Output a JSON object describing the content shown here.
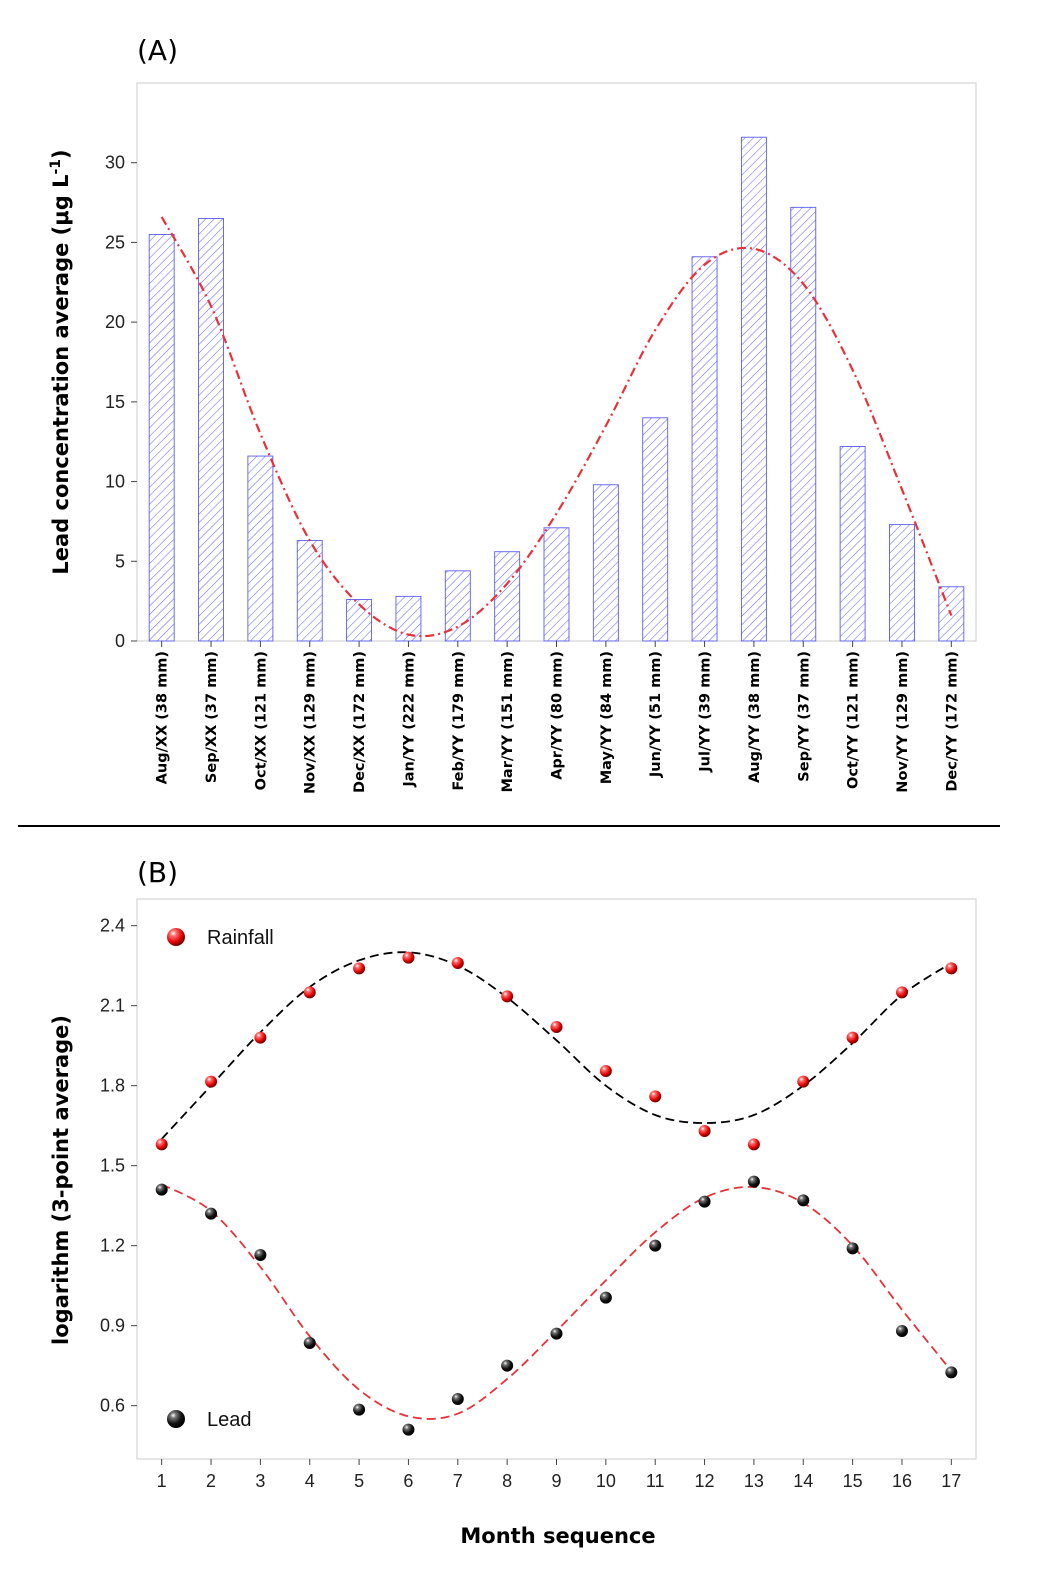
{
  "chart_data": [
    {
      "panel": "A",
      "type": "bar",
      "title": "(A)",
      "ylabel": "Lead concentration average (μg L",
      "ylabel_sup": "-1",
      "ylabel_close": ")",
      "ylim": [
        0,
        35
      ],
      "yticks": [
        0,
        5,
        10,
        15,
        20,
        25,
        30
      ],
      "categories": [
        "Aug/XX (38 mm)",
        "Sep/XX (37 mm)",
        "Oct/XX (121 mm)",
        "Nov/XX (129 mm)",
        "Dec/XX (172 mm)",
        "Jan/YY (222 mm)",
        "Feb/YY (179 mm)",
        "Mar/YY (151 mm)",
        "Apr/YY (80 mm)",
        "May/YY (84 mm)",
        "Jun/YY (51 mm)",
        "Jul/YY (39 mm)",
        "Aug/YY (38 mm)",
        "Sep/YY (37 mm)",
        "Oct/YY (121 mm)",
        "Nov/YY (129 mm)",
        "Dec/YY (172 mm)"
      ],
      "values": [
        25.5,
        26.5,
        11.6,
        6.3,
        2.6,
        2.8,
        4.4,
        5.6,
        7.1,
        9.8,
        14.0,
        24.1,
        31.6,
        27.2,
        12.2,
        7.3,
        3.4
      ],
      "fit_line": {
        "style": "dash-dot",
        "color": "#e8323a",
        "x": [
          1,
          2,
          3,
          4,
          5,
          6,
          7,
          8,
          9,
          10,
          11,
          12,
          13,
          14,
          15,
          16,
          17
        ],
        "y": [
          26.6,
          21.0,
          13.0,
          6.3,
          2.3,
          0.4,
          0.9,
          3.6,
          8.0,
          13.5,
          19.5,
          23.6,
          24.6,
          22.4,
          17.0,
          9.5,
          1.6
        ]
      },
      "bar_color": "#5b5bf0"
    },
    {
      "panel": "B",
      "type": "scatter",
      "title": "(B)",
      "xlabel": "Month sequence",
      "ylabel": "logarithm (3-point average)",
      "xlim": [
        0.5,
        17.5
      ],
      "ylim": [
        0.4,
        2.5
      ],
      "xticks": [
        1,
        2,
        3,
        4,
        5,
        6,
        7,
        8,
        9,
        10,
        11,
        12,
        13,
        14,
        15,
        16,
        17
      ],
      "yticks": [
        "0.6",
        "0.9",
        "1.2",
        "1.5",
        "1.8",
        "2.1",
        "2.4"
      ],
      "series": [
        {
          "name": "Rainfall",
          "color": "#ff1a1a",
          "x": [
            1,
            2,
            3,
            4,
            5,
            6,
            7,
            8,
            9,
            10,
            11,
            12,
            13,
            14,
            15,
            16,
            17
          ],
          "y": [
            1.58,
            1.815,
            1.98,
            2.15,
            2.24,
            2.28,
            2.26,
            2.135,
            2.02,
            1.855,
            1.76,
            1.63,
            1.58,
            1.815,
            1.98,
            2.15,
            2.24
          ],
          "fit": {
            "color": "#000000",
            "x": [
              1,
              2,
              3,
              4,
              5,
              6,
              7,
              8,
              9,
              10,
              11,
              12,
              13,
              14,
              15,
              16,
              17
            ],
            "y": [
              1.6,
              1.8,
              2.0,
              2.17,
              2.27,
              2.3,
              2.25,
              2.13,
              1.97,
              1.8,
              1.69,
              1.66,
              1.69,
              1.8,
              1.96,
              2.14,
              2.26
            ]
          }
        },
        {
          "name": "Lead",
          "color": "#111111",
          "x": [
            1,
            2,
            3,
            4,
            5,
            6,
            7,
            8,
            9,
            10,
            11,
            12,
            13,
            14,
            15,
            16,
            17
          ],
          "y": [
            1.41,
            1.32,
            1.165,
            0.835,
            0.585,
            0.51,
            0.625,
            0.75,
            0.87,
            1.005,
            1.2,
            1.365,
            1.44,
            1.37,
            1.19,
            0.88,
            0.725
          ],
          "fit": {
            "color": "#e8323a",
            "x": [
              1,
              2,
              3,
              4,
              5,
              6,
              7,
              8,
              9,
              10,
              11,
              12,
              13,
              14,
              15,
              16,
              17
            ],
            "y": [
              1.43,
              1.33,
              1.12,
              0.86,
              0.66,
              0.56,
              0.57,
              0.7,
              0.88,
              1.07,
              1.25,
              1.38,
              1.42,
              1.36,
              1.2,
              0.96,
              0.73
            ]
          }
        }
      ],
      "legend": [
        {
          "label": "Rainfall",
          "placement": "top-left"
        },
        {
          "label": "Lead",
          "placement": "bottom-left"
        }
      ]
    }
  ]
}
